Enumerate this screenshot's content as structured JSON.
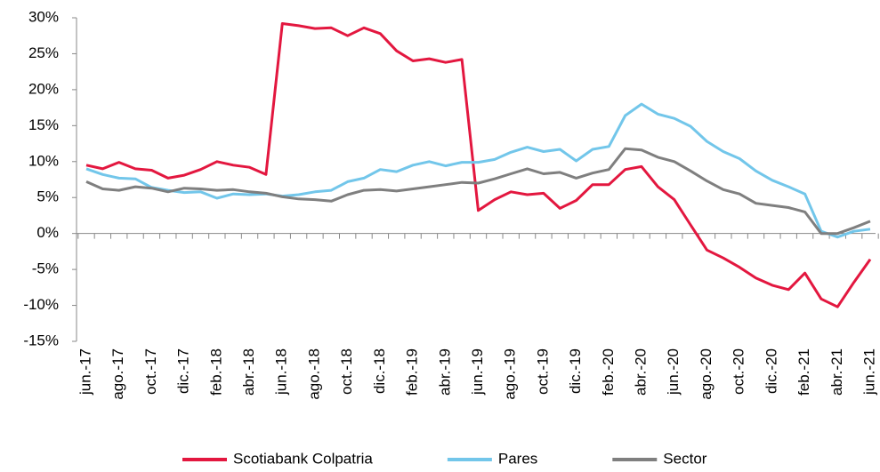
{
  "chart_data": {
    "type": "line",
    "categories": [
      "jun.-17",
      null,
      "ago.-17",
      null,
      "oct.-17",
      null,
      "dic.-17",
      null,
      "feb.-18",
      null,
      "abr.-18",
      null,
      "jun.-18",
      null,
      "ago.-18",
      null,
      "oct.-18",
      null,
      "dic.-18",
      null,
      "feb.-19",
      null,
      "abr.-19",
      null,
      "jun.-19",
      null,
      "ago.-19",
      null,
      "oct.-19",
      null,
      "dic.-19",
      null,
      "feb.-20",
      null,
      "abr.-20",
      null,
      "jun.-20",
      null,
      "ago.-20",
      null,
      "oct.-20",
      null,
      "dic.-20",
      null,
      "feb.-21",
      null,
      "abr.-21",
      null,
      "jun.-21"
    ],
    "series": [
      {
        "name": "Scotiabank Colpatria",
        "color": "#e3173f",
        "values": [
          9.5,
          9.0,
          9.9,
          9.0,
          8.8,
          7.7,
          8.1,
          8.9,
          10.0,
          9.5,
          9.2,
          8.2,
          29.2,
          28.9,
          28.5,
          28.6,
          27.5,
          28.6,
          27.8,
          25.4,
          24.0,
          24.3,
          23.8,
          24.2,
          3.2,
          4.7,
          5.8,
          5.4,
          5.6,
          3.5,
          4.6,
          6.8,
          6.8,
          8.9,
          9.3,
          6.5,
          4.7,
          1.2,
          -2.3,
          -3.4,
          -4.7,
          -6.2,
          -7.2,
          -7.8,
          -5.5,
          -9.1,
          -10.2,
          -6.8,
          -3.6
        ]
      },
      {
        "name": "Pares",
        "color": "#72c6ea",
        "values": [
          9.0,
          8.2,
          7.7,
          7.6,
          6.4,
          6.0,
          5.7,
          5.8,
          4.9,
          5.5,
          5.4,
          5.5,
          5.2,
          5.4,
          5.8,
          6.0,
          7.2,
          7.7,
          8.9,
          8.6,
          9.5,
          10.0,
          9.4,
          9.9,
          9.9,
          10.3,
          11.3,
          12.0,
          11.4,
          11.7,
          10.1,
          11.7,
          12.1,
          16.4,
          18.0,
          16.6,
          16.0,
          14.9,
          12.8,
          11.4,
          10.4,
          8.7,
          7.4,
          6.5,
          5.5,
          0.3,
          -0.5,
          0.3,
          0.6
        ]
      },
      {
        "name": "Sector",
        "color": "#7f7f7f",
        "values": [
          7.2,
          6.2,
          6.0,
          6.5,
          6.3,
          5.8,
          6.3,
          6.2,
          6.0,
          6.1,
          5.8,
          5.6,
          5.1,
          4.8,
          4.7,
          4.5,
          5.4,
          6.0,
          6.1,
          5.9,
          6.2,
          6.5,
          6.8,
          7.1,
          7.0,
          7.6,
          8.3,
          9.0,
          8.3,
          8.5,
          7.7,
          8.4,
          8.9,
          11.8,
          11.6,
          10.6,
          10.0,
          8.7,
          7.3,
          6.1,
          5.5,
          4.2,
          3.9,
          3.6,
          3.0,
          0.0,
          0.0,
          0.8,
          1.7
        ]
      }
    ],
    "ylim": [
      -15,
      30
    ],
    "yticks": [
      {
        "value": -15,
        "label": "-15%"
      },
      {
        "value": -10,
        "label": "-10%"
      },
      {
        "value": -5,
        "label": "-5%"
      },
      {
        "value": 0,
        "label": "0%"
      },
      {
        "value": 5,
        "label": "5%"
      },
      {
        "value": 10,
        "label": "10%"
      },
      {
        "value": 15,
        "label": "15%"
      },
      {
        "value": 20,
        "label": "20%"
      },
      {
        "value": 25,
        "label": "25%"
      },
      {
        "value": 30,
        "label": "30%"
      }
    ],
    "grid": false,
    "legend": "bottom"
  }
}
